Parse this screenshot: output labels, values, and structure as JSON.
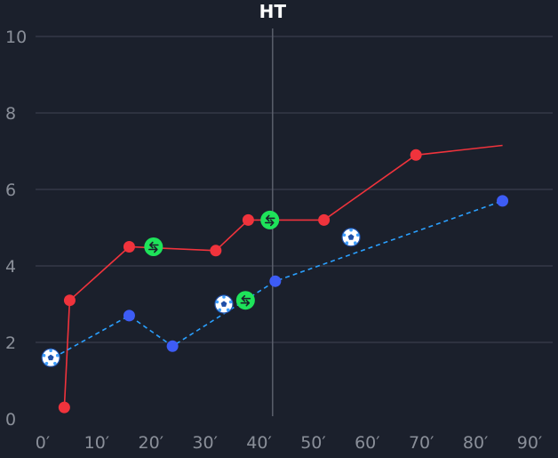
{
  "chart_data": {
    "type": "line",
    "title": "",
    "xlabel": "",
    "ylabel": "",
    "xlim": [
      0,
      90
    ],
    "ylim": [
      0,
      10
    ],
    "x_ticks": [
      "0′",
      "10′",
      "20′",
      "30′",
      "40′",
      "50′",
      "60′",
      "70′",
      "80′",
      "90′"
    ],
    "y_ticks": [
      "0",
      "2",
      "4",
      "6",
      "8",
      "10"
    ],
    "y_tick_values": [
      0,
      2,
      4,
      6,
      8,
      10
    ],
    "x_tick_values": [
      0,
      10,
      20,
      30,
      40,
      50,
      60,
      70,
      80,
      90
    ],
    "grid": true,
    "halftime": {
      "label": "HT",
      "minute": 42.5
    },
    "series": [
      {
        "color": "#f0333c",
        "line_style": "solid",
        "points": [
          [
            4,
            0.3
          ],
          [
            5,
            3.1
          ],
          [
            16,
            4.5
          ],
          [
            32,
            4.4
          ],
          [
            38,
            5.2
          ],
          [
            52,
            5.2
          ],
          [
            69,
            6.9
          ]
        ],
        "line_end": [
          85,
          7.15
        ]
      },
      {
        "color": "#3d5cf5",
        "line_color": "#2aa0ff",
        "line_style": "dashed",
        "points": [
          [
            16,
            2.7
          ],
          [
            24,
            1.9
          ],
          [
            43,
            3.6
          ],
          [
            85,
            5.7
          ]
        ],
        "line_start": [
          2,
          1.6
        ]
      }
    ],
    "events": [
      {
        "type": "goal",
        "icon": "soccer-ball-icon",
        "x": 1.5,
        "y": 1.6
      },
      {
        "type": "goal",
        "icon": "soccer-ball-icon",
        "x": 33.5,
        "y": 3.0
      },
      {
        "type": "goal",
        "icon": "soccer-ball-icon",
        "x": 57,
        "y": 4.75
      },
      {
        "type": "substitution",
        "icon": "substitution-icon",
        "x": 20.5,
        "y": 4.5
      },
      {
        "type": "substitution",
        "icon": "substitution-icon",
        "x": 42,
        "y": 5.2
      },
      {
        "type": "substitution",
        "icon": "substitution-icon",
        "x": 37.5,
        "y": 3.1
      }
    ],
    "colors": {
      "background": "#1b202c",
      "grid": "#343946",
      "tick": "#8a8f99",
      "sub_icon": "#1ee35a"
    }
  }
}
